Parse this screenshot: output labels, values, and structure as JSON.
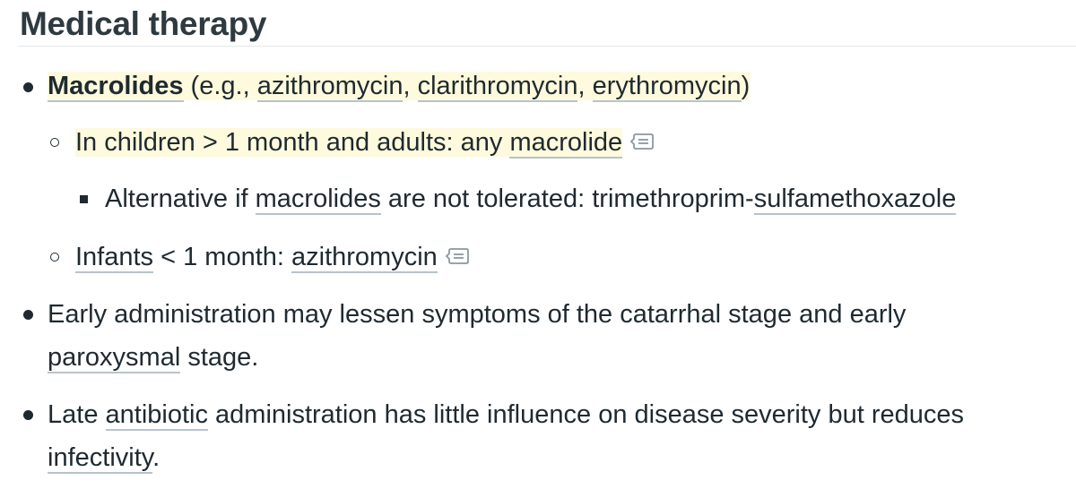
{
  "heading": "Medical therapy",
  "bullets": [
    {
      "link_main": "Macrolides",
      "text_open": " (e.g., ",
      "link_1": "azithromycin",
      "sep_1": ", ",
      "link_2": "clarithromycin",
      "sep_2": ", ",
      "link_3": "erythromycin",
      "text_close": ")"
    },
    {
      "text_1": "In children > 1 month and adults: any ",
      "link_1": "macrolide",
      "icon": "note-icon"
    },
    {
      "text_1": "Alternative if ",
      "link_1": "macrolides",
      "text_2": " are not tolerated: trimethroprim-",
      "link_2": "sulfamethoxazole"
    },
    {
      "link_1": "Infants",
      "text_1": " < 1 month: ",
      "link_2": "azithromycin",
      "icon": "note-icon"
    },
    {
      "text_1": "Early administration may lessen symptoms of the catarrhal stage and early",
      "link_1": "paroxysmal",
      "text_2": " stage."
    },
    {
      "text_1": "Late ",
      "link_1": "antibiotic",
      "text_2": " administration has little influence on disease severity but reduces",
      "link_2": "infectivity",
      "text_3": "."
    }
  ]
}
